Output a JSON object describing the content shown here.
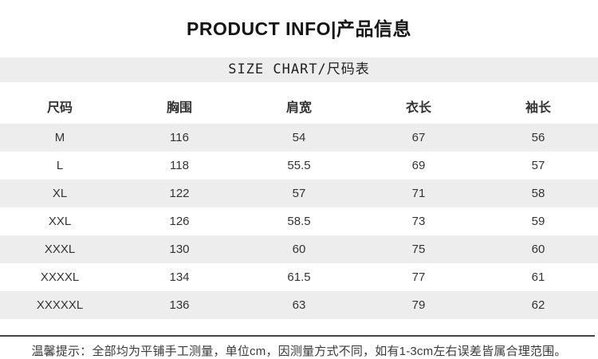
{
  "page": {
    "title": "PRODUCT INFO|产品信息",
    "subtitle": "SIZE CHART/尺码表",
    "note": "温馨提示：全部均为平铺手工测量，单位cm，因测量方式不同，如有1-3cm左右误差皆属合理范围。"
  },
  "chart_data": {
    "type": "table",
    "title": "SIZE CHART/尺码表",
    "columns": [
      "尺码",
      "胸围",
      "肩宽",
      "衣长",
      "袖长"
    ],
    "unit": "cm",
    "rows": [
      [
        "M",
        "116",
        "54",
        "67",
        "56"
      ],
      [
        "L",
        "118",
        "55.5",
        "69",
        "57"
      ],
      [
        "XL",
        "122",
        "57",
        "71",
        "58"
      ],
      [
        "XXL",
        "126",
        "58.5",
        "73",
        "59"
      ],
      [
        "XXXL",
        "130",
        "60",
        "75",
        "60"
      ],
      [
        "XXXXL",
        "134",
        "61.5",
        "77",
        "61"
      ],
      [
        "XXXXXL",
        "136",
        "63",
        "79",
        "62"
      ]
    ],
    "stripe_rows": [
      0,
      2,
      4,
      6
    ]
  },
  "colors": {
    "stripe_bg": "#ededed",
    "banner_bg": "#ededed",
    "divider": "#454545",
    "text": "#333333",
    "title_text": "#151515"
  }
}
